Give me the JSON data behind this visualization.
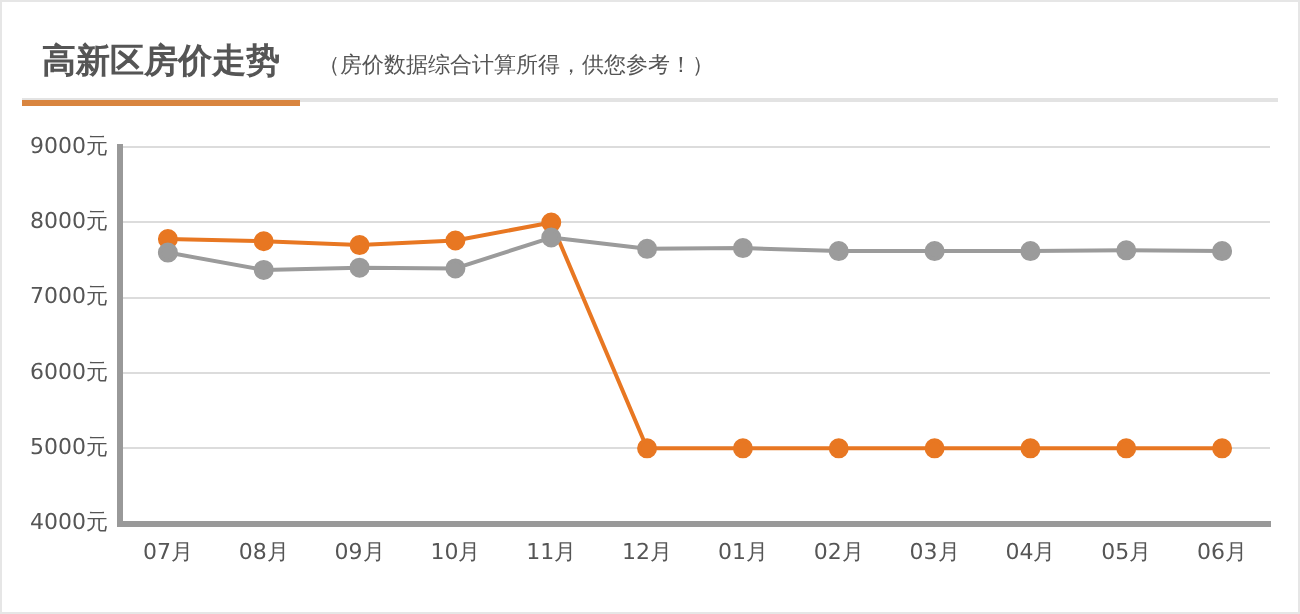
{
  "chart_data": {
    "type": "line",
    "title": "高新区房价走势",
    "subtitle": "（房价数据综合计算所得，供您参考！）",
    "categories": [
      "07月",
      "08月",
      "09月",
      "10月",
      "11月",
      "12月",
      "01月",
      "02月",
      "03月",
      "04月",
      "05月",
      "06月"
    ],
    "series": [
      {
        "color": "#e87722",
        "values": [
          7780,
          7750,
          7700,
          7760,
          8000,
          5000,
          5000,
          5000,
          5000,
          5000,
          5000,
          5000
        ]
      },
      {
        "color": "#9b9b9b",
        "values": [
          7600,
          7370,
          7400,
          7390,
          7800,
          7650,
          7660,
          7620,
          7620,
          7620,
          7630,
          7620
        ]
      }
    ],
    "ylim": [
      4000,
      9000
    ],
    "yticks": [
      {
        "value": 4000,
        "label": "4000元"
      },
      {
        "value": 5000,
        "label": "5000元"
      },
      {
        "value": 6000,
        "label": "6000元"
      },
      {
        "value": 7000,
        "label": "7000元"
      },
      {
        "value": 8000,
        "label": "8000元"
      },
      {
        "value": 9000,
        "label": "9000元"
      }
    ],
    "grid": "y",
    "marker": "circle",
    "line_style": "solid",
    "legend": false
  }
}
